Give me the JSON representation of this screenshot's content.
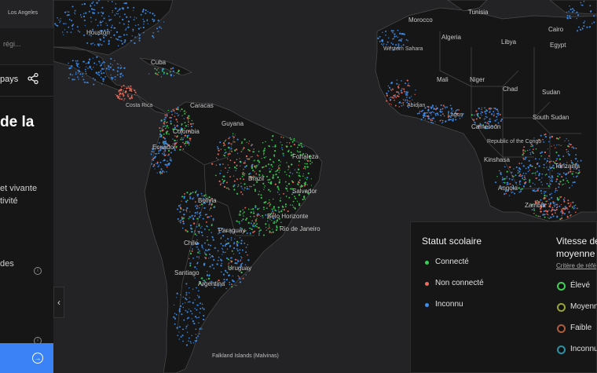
{
  "panel": {
    "search_placeholder": "régi...",
    "share_label": "pays",
    "title_line1": "de la",
    "description_line1": "et vivante",
    "description_line2": "tivité",
    "stat_label": "des"
  },
  "map": {
    "labels": [
      "Los Angeles",
      "Houston",
      "Cuba",
      "Caracas",
      "Colombia",
      "Ecuador",
      "Guyana",
      "Brazil",
      "Fortaleza",
      "Salvador",
      "Bolivia",
      "Paraguay",
      "Belo Horizonte",
      "Rio de Janeiro",
      "Chile",
      "Uruguay",
      "Santiago",
      "Argentina",
      "Falkland Islands (Malvinas)",
      "Tunisia",
      "Morocco",
      "Algeria",
      "Libya",
      "Egypt",
      "Cairo",
      "Western Sahara",
      "Mali",
      "Niger",
      "Chad",
      "Sudan",
      "South Sudan",
      "Cameroon",
      "Republic of the Congo",
      "Kinshasa",
      "Angola",
      "Tanzania",
      "Zambia",
      "Costa Rica",
      "Abidjan",
      "Lagos"
    ]
  },
  "legend": {
    "school_status": {
      "title": "Statut scolaire",
      "items": [
        {
          "label": "Connecté",
          "color": "#39d353"
        },
        {
          "label": "Non connecté",
          "color": "#f26b5b"
        },
        {
          "label": "Inconnu",
          "color": "#3d8ef0"
        }
      ]
    },
    "speed": {
      "title_line1": "Vitesse de",
      "title_line2": "moyenne",
      "criteria_link": "Critère de réfé",
      "items": [
        {
          "label": "Élevé",
          "color": "#39d353"
        },
        {
          "label": "Moyenne",
          "color": "#9aa33a"
        },
        {
          "label": "Faible",
          "color": "#b35a3a"
        },
        {
          "label": "Inconnu",
          "color": "#2f8fa3"
        }
      ]
    }
  },
  "colors": {
    "background": "#232325",
    "land": "#161616",
    "border": "#4a4a4a",
    "accent": "#3b82f6"
  },
  "icons": {
    "share": "share-icon",
    "info": "info-icon",
    "collapse": "chevron-left-icon",
    "go": "arrow-right-circle-icon"
  }
}
